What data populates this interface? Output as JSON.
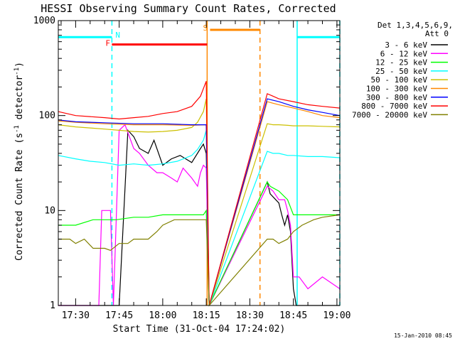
{
  "chart_data": {
    "type": "line",
    "title": "HESSI Observing Summary Count Rates, Corrected",
    "xlabel": "Start Time (31-Oct-04 17:24:02)",
    "ylabel_main": "Corrected Count Rate (s",
    "ylabel_exp1": "-1",
    "ylabel_mid": " detector",
    "ylabel_exp2": "-1",
    "ylabel_end": ")",
    "x_unit": "minutes after 17:00 UT",
    "xlim": [
      24.03,
      121
    ],
    "ylim": [
      1,
      1000
    ],
    "y_scale": "log",
    "x_ticks": [
      {
        "value": 30,
        "label": "17:30"
      },
      {
        "value": 45,
        "label": "17:45"
      },
      {
        "value": 60,
        "label": "18:00"
      },
      {
        "value": 75,
        "label": "18:15"
      },
      {
        "value": 90,
        "label": "18:30"
      },
      {
        "value": 105,
        "label": "18:45"
      },
      {
        "value": 120,
        "label": "19:00"
      }
    ],
    "y_ticks": [
      {
        "value": 1,
        "label": "1"
      },
      {
        "value": 10,
        "label": "10"
      },
      {
        "value": 100,
        "label": "100"
      },
      {
        "value": 1000,
        "label": "1000"
      }
    ],
    "legend_header": [
      "Det 1,3,4,5,6,9,",
      "Att 0"
    ],
    "legend_position": "right",
    "series": [
      {
        "name": "3 - 6 keV",
        "color": "#000000",
        "x": [
          24,
          40,
          42,
          43,
          45,
          48,
          50,
          52,
          55,
          57,
          60,
          63,
          66,
          70,
          73,
          74,
          75,
          76,
          96,
          97,
          100,
          101,
          102,
          103,
          104,
          105,
          106,
          107,
          110,
          115,
          121
        ],
        "y": [
          1,
          1,
          1,
          1,
          1,
          70,
          60,
          45,
          40,
          55,
          30,
          35,
          38,
          32,
          45,
          50,
          40,
          1,
          20,
          15,
          12,
          9,
          7,
          9,
          6,
          1.5,
          1,
          1,
          1,
          1,
          1
        ]
      },
      {
        "name": "6 - 12 keV",
        "color": "#ff00ff",
        "x": [
          24,
          38,
          39,
          40,
          42,
          43,
          45,
          47,
          50,
          52,
          55,
          58,
          60,
          63,
          65,
          67,
          70,
          72,
          73,
          74,
          75,
          76,
          96,
          98,
          100,
          102,
          103,
          104,
          105,
          107,
          110,
          115,
          121
        ],
        "y": [
          1,
          1,
          10,
          10,
          10,
          1,
          70,
          80,
          45,
          40,
          30,
          25,
          25,
          22,
          20,
          28,
          22,
          18,
          25,
          30,
          28,
          1,
          18,
          16,
          13,
          13,
          10,
          7,
          2,
          2,
          1.5,
          2,
          1.5
        ]
      },
      {
        "name": "12 - 25 keV",
        "color": "#00ff00",
        "x": [
          24,
          30,
          36,
          38,
          42,
          44,
          50,
          55,
          60,
          65,
          70,
          74,
          75,
          76,
          96,
          97,
          100,
          103,
          105,
          110,
          115,
          121
        ],
        "y": [
          7,
          7,
          8,
          8,
          8,
          8,
          8.5,
          8.5,
          9,
          9,
          9,
          9,
          10,
          1,
          20,
          18,
          16,
          13,
          9,
          9,
          9,
          9
        ]
      },
      {
        "name": "25 - 50 keV",
        "color": "#00ffff",
        "x": [
          24,
          30,
          35,
          40,
          45,
          50,
          55,
          60,
          65,
          70,
          72,
          74,
          75,
          76,
          96,
          98,
          100,
          103,
          105,
          110,
          115,
          121
        ],
        "y": [
          38,
          35,
          33,
          32,
          30,
          31,
          30,
          31,
          33,
          38,
          44,
          55,
          70,
          1,
          42,
          40,
          40,
          38,
          38,
          37,
          37,
          36
        ]
      },
      {
        "name": "50 - 100 keV",
        "color": "#ccc000",
        "x": [
          24,
          30,
          35,
          40,
          45,
          50,
          55,
          60,
          65,
          70,
          72,
          74,
          75,
          76,
          96,
          98,
          100,
          103,
          105,
          110,
          115,
          121
        ],
        "y": [
          80,
          76,
          74,
          72,
          70,
          68,
          67,
          68,
          70,
          75,
          85,
          110,
          150,
          1,
          82,
          80,
          80,
          79,
          78,
          78,
          77,
          76
        ]
      },
      {
        "name": "100 - 300 keV",
        "color": "#ff8800",
        "x": [
          24,
          30,
          40,
          50,
          60,
          70,
          75,
          76,
          96,
          100,
          105,
          110,
          115,
          121
        ],
        "y": [
          88,
          85,
          82,
          80,
          80,
          79,
          80,
          1,
          140,
          130,
          120,
          110,
          100,
          95
        ]
      },
      {
        "name": "300 - 800 keV",
        "color": "#0000ff",
        "x": [
          24,
          30,
          40,
          50,
          60,
          70,
          75,
          76,
          96,
          100,
          105,
          110,
          115,
          121
        ],
        "y": [
          90,
          86,
          84,
          82,
          82,
          80,
          80,
          1,
          150,
          140,
          125,
          115,
          108,
          100
        ]
      },
      {
        "name": "800 - 7000 keV",
        "color": "#ff0000",
        "x": [
          24,
          30,
          40,
          45,
          50,
          55,
          60,
          65,
          70,
          73,
          75,
          76,
          96,
          98,
          100,
          105,
          110,
          115,
          121
        ],
        "y": [
          110,
          100,
          95,
          92,
          95,
          98,
          105,
          110,
          125,
          160,
          230,
          1,
          170,
          160,
          150,
          140,
          130,
          125,
          120
        ]
      },
      {
        "name": "7000 - 20000 keV",
        "color": "#808000",
        "x": [
          24,
          28,
          30,
          33,
          36,
          40,
          42,
          45,
          48,
          50,
          55,
          58,
          60,
          64,
          68,
          72,
          75,
          76,
          96,
          98,
          100,
          103,
          105,
          108,
          112,
          115,
          121
        ],
        "y": [
          5,
          5,
          4.5,
          5,
          4,
          4,
          3.8,
          4.5,
          4.5,
          5,
          5,
          6,
          7,
          8,
          8,
          8,
          8,
          1,
          5,
          5,
          4.5,
          5,
          6,
          7,
          8,
          8.5,
          9
        ]
      }
    ],
    "cyan_bars": [
      {
        "x0": 24.03,
        "x1": 42.5,
        "y": 670
      },
      {
        "x0": 106.3,
        "x1": 121,
        "y": 670
      }
    ],
    "flare_bar": {
      "x0": 42.5,
      "x1": 75.3,
      "y": 560,
      "color": "#ff0000",
      "label": "F"
    },
    "saa_bar": {
      "x0": 76.3,
      "x1": 93.5,
      "y": 800,
      "color": "#ff8800",
      "label": "S"
    },
    "night_label": {
      "label": "N"
    },
    "vlines": [
      {
        "x": 42.5,
        "color": "#00ffff",
        "style": "dash"
      },
      {
        "x": 75.3,
        "color": "#ff8800",
        "style": "solid"
      },
      {
        "x": 93.5,
        "color": "#ff8800",
        "style": "dash"
      },
      {
        "x": 106.3,
        "color": "#00ffff",
        "style": "solid"
      },
      {
        "x": 121,
        "color": "#00ffff",
        "style": "dash"
      }
    ]
  },
  "timestamp": "15-Jan-2010 08:45"
}
